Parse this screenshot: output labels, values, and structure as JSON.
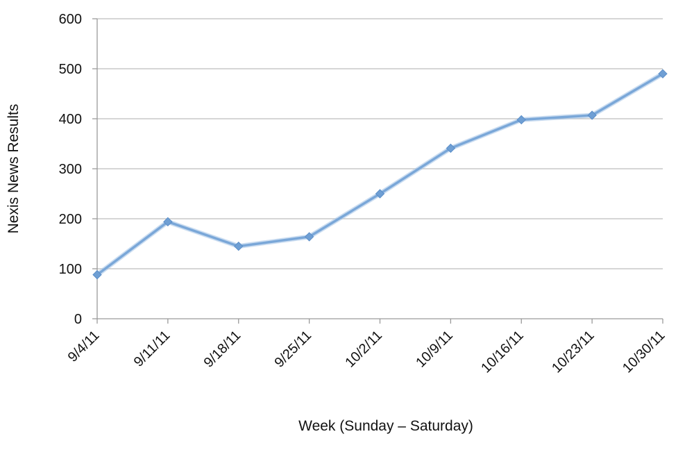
{
  "chart_data": {
    "type": "line",
    "title": "",
    "xlabel": "Week (Sunday – Saturday)",
    "ylabel": "Nexis News Results",
    "categories": [
      "9/4/11",
      "9/11/11",
      "9/18/11",
      "9/25/11",
      "10/2/11",
      "10/9/11",
      "10/16/11",
      "10/23/11",
      "10/30/11"
    ],
    "series": [
      {
        "values": [
          88,
          194,
          145,
          164,
          250,
          341,
          398,
          407,
          490
        ]
      }
    ],
    "ylim": [
      0,
      600
    ],
    "yticks": [
      "0",
      "100",
      "200",
      "300",
      "400",
      "500",
      "600"
    ],
    "grid": true,
    "legend": "none",
    "colors": {
      "line": "#7aa7d8",
      "marker": "#6f9fd4"
    }
  }
}
